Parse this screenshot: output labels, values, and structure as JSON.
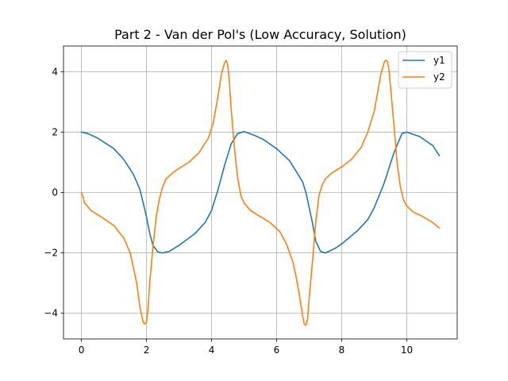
{
  "chart_data": {
    "type": "line",
    "title": "Part 2 - Van der Pol's (Low Accuracy, Solution)",
    "xlabel": "",
    "ylabel": "",
    "xlim": [
      -0.55,
      11.55
    ],
    "ylim": [
      -4.85,
      4.85
    ],
    "xticks": [
      0,
      2,
      4,
      6,
      8,
      10
    ],
    "yticks": [
      -4,
      -2,
      0,
      2,
      4
    ],
    "xtick_labels": [
      "0",
      "2",
      "4",
      "6",
      "8",
      "10"
    ],
    "ytick_labels": [
      "−4",
      "−2",
      "0",
      "2",
      "4"
    ],
    "grid": true,
    "legend_position": "top-right",
    "series": [
      {
        "name": "y1",
        "color": "#1f77b4",
        "x": [
          0,
          0.2,
          0.5,
          1.0,
          1.3,
          1.6,
          1.8,
          2.0,
          2.1,
          2.2,
          2.35,
          2.5,
          2.7,
          3.0,
          3.5,
          3.8,
          4.0,
          4.2,
          4.4,
          4.6,
          4.8,
          5.0,
          5.3,
          5.6,
          6.0,
          6.4,
          6.8,
          6.9,
          7.1,
          7.2,
          7.35,
          7.5,
          7.8,
          8.0,
          8.5,
          8.8,
          9.0,
          9.3,
          9.6,
          9.85,
          10.0,
          10.4,
          10.8,
          11.0
        ],
        "y": [
          2.0,
          1.95,
          1.8,
          1.45,
          1.1,
          0.6,
          0.1,
          -0.8,
          -1.35,
          -1.75,
          -1.97,
          -2.0,
          -1.95,
          -1.75,
          -1.35,
          -1.0,
          -0.6,
          0.1,
          0.9,
          1.6,
          1.95,
          2.02,
          1.9,
          1.75,
          1.45,
          1.05,
          0.35,
          0.0,
          -1.0,
          -1.6,
          -1.95,
          -2.0,
          -1.85,
          -1.7,
          -1.25,
          -0.9,
          -0.5,
          0.3,
          1.3,
          1.95,
          2.0,
          1.85,
          1.55,
          1.22
        ]
      },
      {
        "name": "y2",
        "color": "#ff7f0e",
        "x": [
          0,
          0.05,
          0.1,
          0.3,
          0.6,
          1.0,
          1.3,
          1.5,
          1.6,
          1.7,
          1.8,
          1.9,
          1.95,
          2.0,
          2.05,
          2.1,
          2.2,
          2.3,
          2.4,
          2.5,
          2.6,
          2.8,
          3.0,
          3.3,
          3.6,
          3.9,
          4.05,
          4.2,
          4.3,
          4.4,
          4.45,
          4.5,
          4.55,
          4.6,
          4.7,
          4.8,
          4.9,
          5.0,
          5.2,
          5.5,
          5.8,
          6.1,
          6.3,
          6.5,
          6.6,
          6.7,
          6.8,
          6.85,
          6.9,
          6.95,
          7.0,
          7.1,
          7.2,
          7.3,
          7.4,
          7.5,
          7.7,
          8.0,
          8.3,
          8.6,
          8.8,
          9.0,
          9.1,
          9.2,
          9.3,
          9.35,
          9.4,
          9.45,
          9.5,
          9.6,
          9.7,
          9.8,
          9.9,
          10.0,
          10.2,
          10.5,
          10.8,
          11.0
        ],
        "y": [
          0.0,
          -0.15,
          -0.35,
          -0.6,
          -0.8,
          -1.1,
          -1.5,
          -2.0,
          -2.5,
          -3.0,
          -3.8,
          -4.3,
          -4.35,
          -4.3,
          -3.8,
          -3.0,
          -1.8,
          -0.8,
          -0.2,
          0.2,
          0.45,
          0.65,
          0.8,
          1.0,
          1.3,
          1.8,
          2.3,
          3.2,
          3.9,
          4.3,
          4.38,
          4.2,
          3.6,
          2.8,
          1.5,
          0.5,
          -0.1,
          -0.35,
          -0.6,
          -0.8,
          -1.0,
          -1.3,
          -1.7,
          -2.3,
          -2.8,
          -3.4,
          -4.1,
          -4.35,
          -4.4,
          -4.2,
          -3.5,
          -2.3,
          -1.0,
          -0.1,
          0.25,
          0.45,
          0.65,
          0.85,
          1.1,
          1.5,
          2.0,
          2.7,
          3.3,
          3.9,
          4.3,
          4.38,
          4.35,
          4.1,
          3.5,
          2.3,
          1.0,
          0.2,
          -0.25,
          -0.45,
          -0.65,
          -0.8,
          -1.0,
          -1.18
        ]
      }
    ]
  }
}
